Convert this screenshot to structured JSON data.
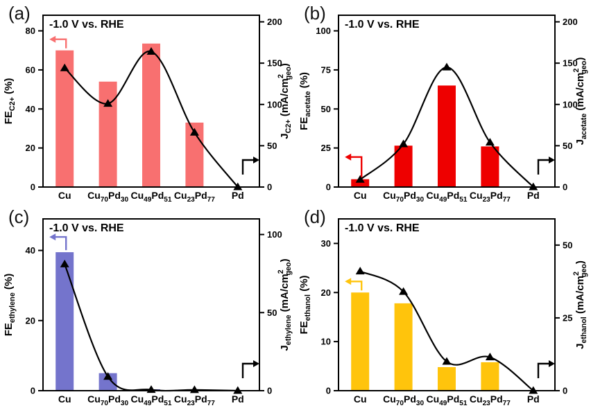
{
  "figure_background": "#ffffff",
  "annotation_text": "-1.0 V vs. RHE",
  "x_categories_rich": [
    [
      {
        "t": "Cu"
      }
    ],
    [
      {
        "t": "Cu"
      },
      {
        "t": "70",
        "sub": true
      },
      {
        "t": "Pd"
      },
      {
        "t": "30",
        "sub": true
      }
    ],
    [
      {
        "t": "Cu"
      },
      {
        "t": "49",
        "sub": true
      },
      {
        "t": "Pd"
      },
      {
        "t": "51",
        "sub": true
      }
    ],
    [
      {
        "t": "Cu"
      },
      {
        "t": "23",
        "sub": true
      },
      {
        "t": "Pd"
      },
      {
        "t": "77",
        "sub": true
      }
    ],
    [
      {
        "t": "Pd"
      }
    ]
  ],
  "chart_data": [
    {
      "type": "bar",
      "panel": "(a)",
      "title": "-1.0 V vs. RHE",
      "grid": false,
      "legend": "none",
      "categories": [
        "Cu",
        "Cu70Pd30",
        "Cu49Pd51",
        "Cu23Pd77",
        "Pd"
      ],
      "series": [
        {
          "name": "FE_C2+ (%)",
          "plot": "bar",
          "axis": "left",
          "color": "#F87070",
          "values": [
            70,
            54,
            73.5,
            33,
            0
          ]
        },
        {
          "name": "J_C2+ (mA/cm2geo)",
          "plot": "line",
          "axis": "right",
          "color": "#000000",
          "marker": "triangle-up",
          "values": [
            144,
            101,
            164,
            66,
            0
          ]
        }
      ],
      "left_axis": {
        "label": "FE_C2+ (%)",
        "ticks": [
          0,
          20,
          40,
          60,
          80
        ],
        "range": [
          0,
          88
        ],
        "label_rich": [
          {
            "t": "FE"
          },
          {
            "t": "C2+",
            "sub": true
          },
          {
            "t": " (%)"
          }
        ]
      },
      "right_axis": {
        "label": "J_C2+ (mA/cm2geo)",
        "ticks": [
          0,
          50,
          100,
          150,
          200
        ],
        "range": [
          0,
          208
        ],
        "label_rich": [
          {
            "t": "J"
          },
          {
            "t": "C2+",
            "sub": true
          },
          {
            "t": " (mA/cm"
          },
          {
            "t": "2",
            "sup": true
          },
          {
            "t": "geo",
            "sub": true
          },
          {
            "t": ")"
          }
        ]
      },
      "left_arrow_color": "#F87070"
    },
    {
      "type": "bar",
      "panel": "(b)",
      "title": "-1.0 V vs. RHE",
      "grid": false,
      "legend": "none",
      "categories": [
        "Cu",
        "Cu70Pd30",
        "Cu49Pd51",
        "Cu23Pd77",
        "Pd"
      ],
      "series": [
        {
          "name": "FE_acetate (%)",
          "plot": "bar",
          "axis": "left",
          "color": "#EE0000",
          "values": [
            5,
            26.5,
            65,
            26,
            0
          ]
        },
        {
          "name": "J_acetate (mA/cm2geo)",
          "plot": "line",
          "axis": "right",
          "color": "#000000",
          "marker": "triangle-up",
          "values": [
            9,
            52,
            145,
            54,
            0
          ]
        }
      ],
      "left_axis": {
        "label": "FE_acetate (%)",
        "ticks": [
          0,
          25,
          50,
          75,
          100
        ],
        "range": [
          0,
          110
        ],
        "label_rich": [
          {
            "t": "FE"
          },
          {
            "t": "acetate",
            "sub": true
          },
          {
            "t": " (%)"
          }
        ]
      },
      "right_axis": {
        "label": "J_acetate (mA/cm2geo)",
        "ticks": [
          0,
          50,
          100,
          150,
          200
        ],
        "range": [
          0,
          208
        ],
        "label_rich": [
          {
            "t": "J"
          },
          {
            "t": "acetate",
            "sub": true
          },
          {
            "t": " (mA/cm"
          },
          {
            "t": "2",
            "sup": true
          },
          {
            "t": "geo",
            "sub": true
          },
          {
            "t": ")"
          }
        ]
      },
      "left_arrow_color": "#EE0000"
    },
    {
      "type": "bar",
      "panel": "(c)",
      "title": "-1.0 V vs. RHE",
      "grid": false,
      "legend": "none",
      "categories": [
        "Cu",
        "Cu70Pd30",
        "Cu49Pd51",
        "Cu23Pd77",
        "Pd"
      ],
      "series": [
        {
          "name": "FE_ethylene (%)",
          "plot": "bar",
          "axis": "left",
          "color": "#7474CC",
          "values": [
            39.5,
            5,
            0.4,
            0.15,
            0
          ]
        },
        {
          "name": "J_ethylene (mA/cm2geo)",
          "plot": "line",
          "axis": "right",
          "color": "#000000",
          "marker": "triangle-up",
          "values": [
            81,
            9,
            0.6,
            0.5,
            0
          ]
        }
      ],
      "left_axis": {
        "label": "FE_ethylene (%)",
        "ticks": [
          0,
          20,
          40
        ],
        "range": [
          0,
          49
        ],
        "label_rich": [
          {
            "t": "FE"
          },
          {
            "t": "ethylene",
            "sub": true
          },
          {
            "t": " (%)"
          }
        ]
      },
      "right_axis": {
        "label": "J_ethylene (mA/cm2geo)",
        "ticks": [
          0,
          50,
          100
        ],
        "range": [
          0,
          110
        ],
        "label_rich": [
          {
            "t": "J"
          },
          {
            "t": "ethylene",
            "sub": true
          },
          {
            "t": " (mA/cm"
          },
          {
            "t": "2",
            "sup": true
          },
          {
            "t": "geo",
            "sub": true
          },
          {
            "t": ")"
          }
        ]
      },
      "left_arrow_color": "#7474CC"
    },
    {
      "type": "bar",
      "panel": "(d)",
      "title": "-1.0 V vs. RHE",
      "grid": false,
      "legend": "none",
      "categories": [
        "Cu",
        "Cu70Pd30",
        "Cu49Pd51",
        "Cu23Pd77",
        "Pd"
      ],
      "series": [
        {
          "name": "FE_ethanol (%)",
          "plot": "bar",
          "axis": "left",
          "color": "#FFC40C",
          "values": [
            20,
            17.8,
            4.8,
            5.8,
            0
          ]
        },
        {
          "name": "J_ethanol (mA/cm2geo)",
          "plot": "line",
          "axis": "right",
          "color": "#000000",
          "marker": "triangle-up",
          "values": [
            41,
            34,
            10,
            11.5,
            0
          ]
        }
      ],
      "left_axis": {
        "label": "FE_ethanol (%)",
        "ticks": [
          0,
          10,
          20,
          30
        ],
        "range": [
          0,
          35
        ],
        "label_rich": [
          {
            "t": "FE"
          },
          {
            "t": "ethanol",
            "sub": true
          },
          {
            "t": " (%)"
          }
        ]
      },
      "right_axis": {
        "label": "J_ethanol (mA/cm2geo)",
        "ticks": [
          0,
          25,
          50
        ],
        "range": [
          0,
          59
        ],
        "label_rich": [
          {
            "t": "J"
          },
          {
            "t": "ethanol",
            "sub": true
          },
          {
            "t": " (mA/cm"
          },
          {
            "t": "2",
            "sup": true
          },
          {
            "t": "geo",
            "sub": true
          },
          {
            "t": ")"
          }
        ]
      },
      "left_arrow_color": "#FFC40C"
    }
  ]
}
